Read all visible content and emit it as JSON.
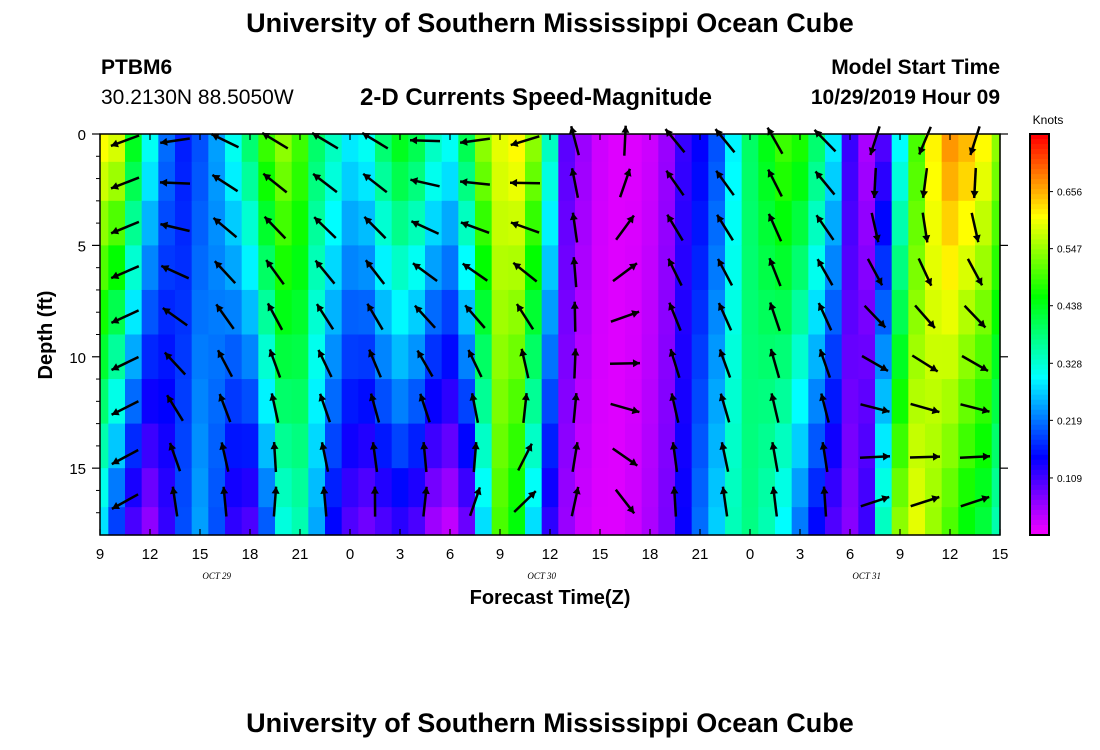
{
  "page": {
    "top_title": "University of Southern Mississippi Ocean Cube",
    "bottom_title": "University of Southern Mississippi Ocean Cube",
    "station_id": "PTBM6",
    "coordinates": "30.2130N 88.5050W",
    "model_start_label": "Model Start Time",
    "model_start_value": "10/29/2019 Hour 09"
  },
  "chart_data": {
    "type": "heatmap",
    "title": "2-D Currents Speed-Magnitude",
    "xlabel": "Forecast Time(Z)",
    "ylabel": "Depth (ft)",
    "colorbar_label": "Knots",
    "colorbar_ticks": [
      "0.656",
      "0.547",
      "0.438",
      "0.328",
      "0.219",
      "0.109"
    ],
    "colorbar_values": [
      0.656,
      0.547,
      0.438,
      0.328,
      0.219,
      0.109
    ],
    "color_range": [
      0.0,
      0.766
    ],
    "x_hours": [
      0,
      54
    ],
    "x_ticks": [
      "9",
      "12",
      "15",
      "18",
      "21",
      "0",
      "3",
      "6",
      "9",
      "12",
      "15",
      "18",
      "21",
      "0",
      "3",
      "6",
      "9",
      "12",
      "15"
    ],
    "date_labels": [
      {
        "text": "OCT 29",
        "hour": 7
      },
      {
        "text": "OCT 30",
        "hour": 26.5
      },
      {
        "text": "OCT 31",
        "hour": 46
      }
    ],
    "y_ticks": [
      0,
      5,
      10,
      15
    ],
    "ylim": [
      0,
      18
    ],
    "depth_levels": [
      0.5,
      2,
      4,
      6,
      8,
      10,
      12,
      14,
      16,
      17.5
    ],
    "speed_time_hours": [
      0,
      1,
      2,
      3,
      4,
      5,
      6,
      7,
      8,
      9,
      10,
      11,
      12,
      13,
      14,
      15,
      16,
      17,
      18,
      19,
      20,
      21,
      22,
      23,
      24,
      25,
      26,
      27,
      28,
      29,
      30,
      31,
      32,
      33,
      34,
      35,
      36,
      37,
      38,
      39,
      40,
      41,
      42,
      43,
      44,
      45,
      46,
      47,
      48,
      49,
      50,
      51,
      52,
      53,
      54
    ],
    "speed_surface": [
      0.62,
      0.6,
      0.45,
      0.32,
      0.22,
      0.17,
      0.2,
      0.25,
      0.32,
      0.4,
      0.5,
      0.55,
      0.5,
      0.4,
      0.35,
      0.3,
      0.32,
      0.4,
      0.45,
      0.42,
      0.35,
      0.32,
      0.42,
      0.55,
      0.6,
      0.62,
      0.55,
      0.35,
      0.1,
      0.06,
      0.03,
      0.02,
      0.02,
      0.03,
      0.06,
      0.12,
      0.15,
      0.2,
      0.3,
      0.4,
      0.45,
      0.5,
      0.48,
      0.4,
      0.3,
      0.12,
      0.05,
      0.1,
      0.3,
      0.5,
      0.62,
      0.68,
      0.66,
      0.62,
      0.55
    ],
    "speed_bottom": [
      0.28,
      0.18,
      0.1,
      0.06,
      0.12,
      0.2,
      0.25,
      0.2,
      0.12,
      0.1,
      0.2,
      0.32,
      0.35,
      0.25,
      0.15,
      0.1,
      0.08,
      0.1,
      0.12,
      0.1,
      0.05,
      0.03,
      0.08,
      0.28,
      0.5,
      0.45,
      0.28,
      0.12,
      0.06,
      0.03,
      0.02,
      0.02,
      0.03,
      0.05,
      0.08,
      0.15,
      0.22,
      0.28,
      0.35,
      0.38,
      0.35,
      0.3,
      0.22,
      0.15,
      0.1,
      0.07,
      0.12,
      0.35,
      0.55,
      0.6,
      0.55,
      0.5,
      0.45,
      0.42,
      0.35
    ],
    "vector_time_hours": [
      1.5,
      4.5,
      7.5,
      10.5,
      13.5,
      16.5,
      19.5,
      22.5,
      25.5,
      28.5,
      31.5,
      34.5,
      37.5,
      40.5,
      43.5,
      46.5,
      49.5,
      52.5
    ],
    "vector_dir_surface_deg": [
      200,
      190,
      155,
      150,
      150,
      150,
      180,
      190,
      200,
      105,
      90,
      130,
      130,
      120,
      135,
      250,
      245,
      250
    ],
    "vector_dir_bottom_deg": [
      210,
      90,
      90,
      80,
      90,
      85,
      75,
      60,
      30,
      75,
      295,
      90,
      95,
      95,
      90,
      30,
      30,
      30
    ]
  }
}
